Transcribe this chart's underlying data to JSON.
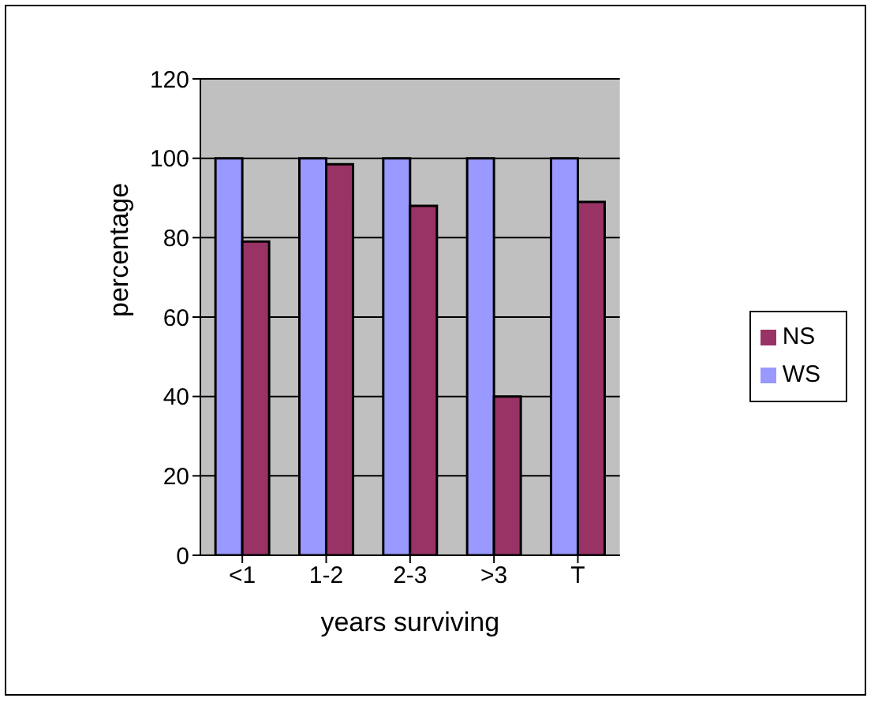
{
  "chart_data": {
    "type": "bar",
    "xlabel": "years surviving",
    "ylabel": "percentage",
    "categories": [
      "<1",
      "1-2",
      "2-3",
      ">3",
      "T"
    ],
    "series": [
      {
        "name": "WS",
        "color": "#9999ff",
        "values": [
          100,
          100,
          100,
          100,
          100
        ]
      },
      {
        "name": "NS",
        "color": "#993366",
        "values": [
          79,
          98.5,
          88,
          40,
          89
        ]
      }
    ],
    "ylim": [
      0,
      120
    ],
    "yticks": [
      0,
      20,
      40,
      60,
      80,
      100,
      120
    ],
    "grid": "y",
    "legend": "right"
  }
}
